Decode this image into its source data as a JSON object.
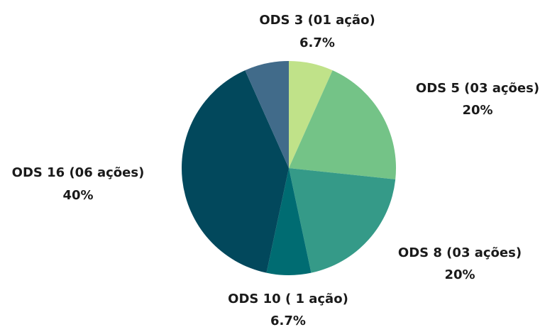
{
  "chart_data": {
    "type": "pie",
    "title": "",
    "slices": [
      {
        "label": "ODS 3 (01 ação)",
        "value": 6.7,
        "value_label": "6.7%",
        "color": "#c0e289"
      },
      {
        "label": "ODS 5 (03 ações)",
        "value": 20,
        "value_label": "20%",
        "color": "#74c387"
      },
      {
        "label": "ODS 8 (03 ações)",
        "value": 20,
        "value_label": "20%",
        "color": "#359a88"
      },
      {
        "label": "ODS 10 ( 1 ação)",
        "value": 6.7,
        "value_label": "6.7%",
        "color": "#006c72"
      },
      {
        "label": "ODS 16 (06 ações)",
        "value": 40,
        "value_label": "40%",
        "color": "#02485c"
      },
      {
        "label": "",
        "value": 6.7,
        "value_label": "",
        "color": "#416b8a"
      }
    ],
    "start": "12 o'clock",
    "direction": "clockwise",
    "legend": "none"
  }
}
